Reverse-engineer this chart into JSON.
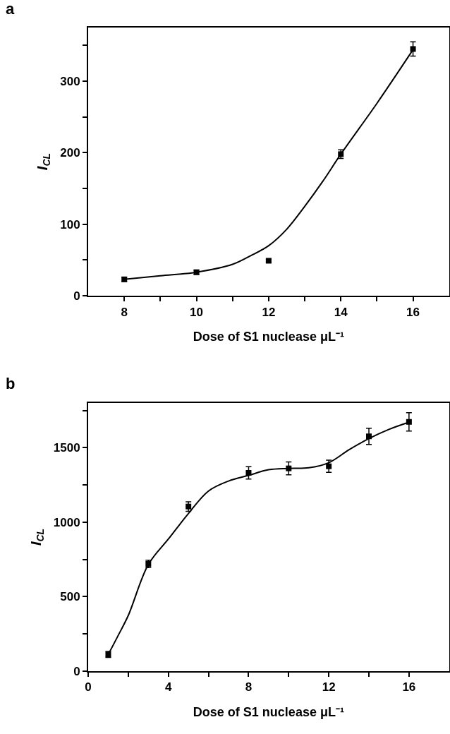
{
  "chart_data": [
    {
      "type": "scatter",
      "title": "a",
      "xlabel": "Dose of S1 nuclease μL⁻¹",
      "ylabel": "I$_{CL}$",
      "x": [
        8,
        10,
        12,
        14,
        16
      ],
      "xlim": [
        7,
        17
      ],
      "ylim": [
        0,
        375
      ],
      "xticks": [
        8,
        {
          "value": 9,
          "label": null
        },
        10,
        {
          "value": 11,
          "label": null
        },
        12,
        {
          "value": 13,
          "label": null
        },
        14,
        {
          "value": 15,
          "label": null
        },
        16
      ],
      "yticks": [
        0,
        {
          "value": 50,
          "label": null
        },
        100,
        {
          "value": 150,
          "label": null
        },
        200,
        {
          "value": 250,
          "label": null
        },
        300,
        {
          "value": 350,
          "label": null
        }
      ],
      "series": [
        {
          "marker": "square",
          "color": "#000000",
          "values": [
            23,
            33,
            49,
            198,
            345
          ],
          "errors": [
            3,
            3,
            2,
            6,
            10
          ]
        },
        {
          "type": "line",
          "marker": "none",
          "color": "#000000",
          "line_style": "solid",
          "x": [
            8,
            9,
            10,
            11,
            11.5,
            12,
            12.5,
            13,
            13.5,
            14,
            15,
            16
          ],
          "values": [
            23,
            28,
            33,
            44,
            56,
            70,
            93,
            125,
            160,
            198,
            269,
            344
          ]
        }
      ]
    },
    {
      "type": "scatter",
      "title": "b",
      "xlabel": "Dose of S1 nuclease μL⁻¹",
      "ylabel": "I$_{CL}$",
      "x": [
        1,
        3,
        5,
        8,
        10,
        12,
        14,
        16
      ],
      "xlim": [
        0,
        18
      ],
      "ylim": [
        0,
        1800
      ],
      "xticks": [
        0,
        {
          "value": 2,
          "label": null
        },
        4,
        {
          "value": 6,
          "label": null
        },
        8,
        {
          "value": 10,
          "label": null
        },
        12,
        {
          "value": 14,
          "label": null
        },
        16
      ],
      "yticks": [
        0,
        {
          "value": 250,
          "label": null
        },
        500,
        {
          "value": 750,
          "label": null
        },
        1000,
        {
          "value": 1250,
          "label": null
        },
        1500,
        {
          "value": 1750,
          "label": null
        }
      ],
      "series": [
        {
          "marker": "square",
          "color": "#000000",
          "values": [
            112,
            720,
            1105,
            1331,
            1361,
            1375,
            1576,
            1673
          ],
          "errors": [
            20,
            25,
            32,
            41,
            43,
            41,
            55,
            62
          ]
        },
        {
          "type": "line",
          "marker": "none",
          "color": "#000000",
          "line_style": "solid",
          "x": [
            1,
            1.5,
            2,
            3,
            4,
            5,
            6,
            7,
            8,
            9,
            10,
            11,
            12,
            13,
            14,
            15,
            16
          ],
          "values": [
            112,
            241,
            374,
            716,
            887,
            1058,
            1209,
            1276,
            1314,
            1352,
            1361,
            1365,
            1399,
            1485,
            1561,
            1623,
            1671
          ]
        }
      ]
    }
  ]
}
